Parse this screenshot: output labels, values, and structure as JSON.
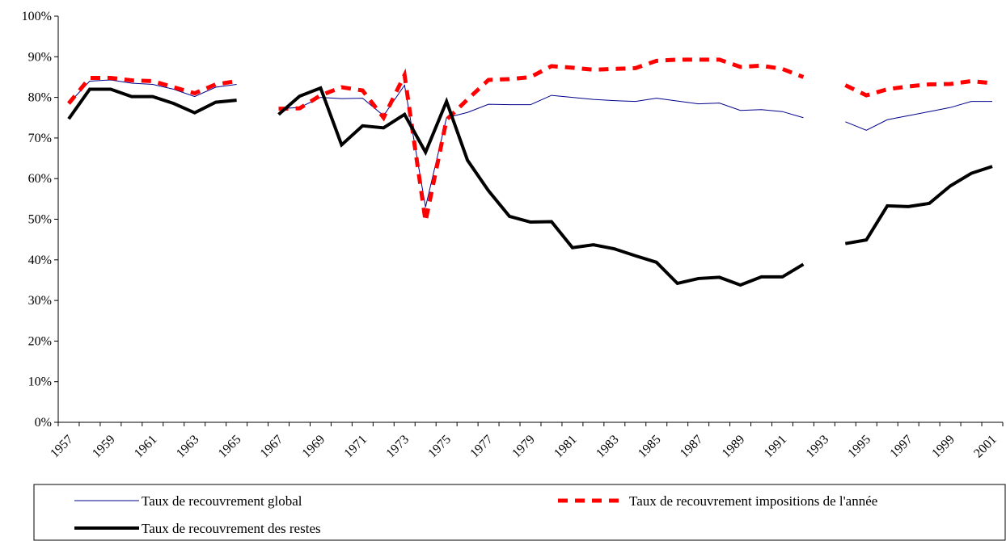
{
  "chart_data": {
    "type": "line",
    "categories": [
      "1957",
      null,
      "1959",
      null,
      "1961",
      null,
      "1963",
      null,
      "1965",
      null,
      "1967",
      null,
      "1969",
      null,
      "1971",
      null,
      "1973",
      null,
      "1975",
      null,
      "1977",
      null,
      "1979",
      null,
      "1981",
      null,
      "1983",
      null,
      "1985",
      null,
      "1987",
      null,
      "1989",
      null,
      "1991",
      null,
      "1993",
      null,
      "1995",
      null,
      "1997",
      null,
      "1999",
      null,
      "2001"
    ],
    "ylim": [
      0,
      100
    ],
    "yticks": [
      {
        "value": 0,
        "label": "0%"
      },
      {
        "value": 10,
        "label": "10%"
      },
      {
        "value": 20,
        "label": "20%"
      },
      {
        "value": 30,
        "label": "30%"
      },
      {
        "value": 40,
        "label": "40%"
      },
      {
        "value": 50,
        "label": "50%"
      },
      {
        "value": 60,
        "label": "60%"
      },
      {
        "value": 70,
        "label": "70%"
      },
      {
        "value": 80,
        "label": "80%"
      },
      {
        "value": 90,
        "label": "90%"
      },
      {
        "value": 100,
        "label": "100%"
      }
    ],
    "series": [
      {
        "name": "Taux de recouvrement global",
        "color": "#00008b",
        "width": 1,
        "dash": "none",
        "values": [
          78.5,
          84,
          84.3,
          83.5,
          83.2,
          82,
          80.2,
          82.5,
          83.2,
          null,
          77.2,
          77.5,
          80,
          79.7,
          79.8,
          75.5,
          83,
          53,
          75,
          76.3,
          78.3,
          78.2,
          78.2,
          80.5,
          80,
          79.5,
          79.2,
          79,
          79.8,
          79.1,
          78.4,
          78.6,
          76.8,
          77,
          76.5,
          75,
          null,
          74,
          71.9,
          74.5,
          75.5,
          76.5,
          77.5,
          79,
          79
        ]
      },
      {
        "name": "Taux de recouvrement impositions de l'année",
        "color": "#ff0000",
        "width": 5,
        "dash": "12 9",
        "values": [
          78.5,
          84.8,
          84.8,
          84.2,
          84,
          82.5,
          81,
          83.2,
          84,
          null,
          77.2,
          77.3,
          80.5,
          82.5,
          81.7,
          75,
          85.5,
          49.5,
          74.5,
          79.5,
          84.3,
          84.5,
          85,
          87.7,
          87.3,
          86.8,
          87,
          87.2,
          89,
          89.3,
          89.3,
          89.3,
          87.5,
          87.8,
          87,
          85,
          null,
          83,
          80.5,
          82,
          82.7,
          83.2,
          83.3,
          84,
          83.5
        ]
      },
      {
        "name": "Taux de recouvrement des restes",
        "color": "#000000",
        "width": 4,
        "dash": "none",
        "values": [
          74.7,
          82,
          82,
          80.2,
          80.2,
          78.5,
          76.2,
          78.8,
          79.3,
          null,
          75.8,
          80.3,
          82.3,
          68.3,
          73,
          72.5,
          75.8,
          66.5,
          79,
          64.5,
          57,
          50.7,
          49.3,
          49.4,
          43,
          43.7,
          42.7,
          41,
          39.4,
          34.2,
          35.4,
          35.7,
          33.8,
          35.8,
          35.8,
          38.9,
          null,
          44,
          44.9,
          53.3,
          53.1,
          53.9,
          58.2,
          61.3,
          63
        ]
      }
    ]
  }
}
